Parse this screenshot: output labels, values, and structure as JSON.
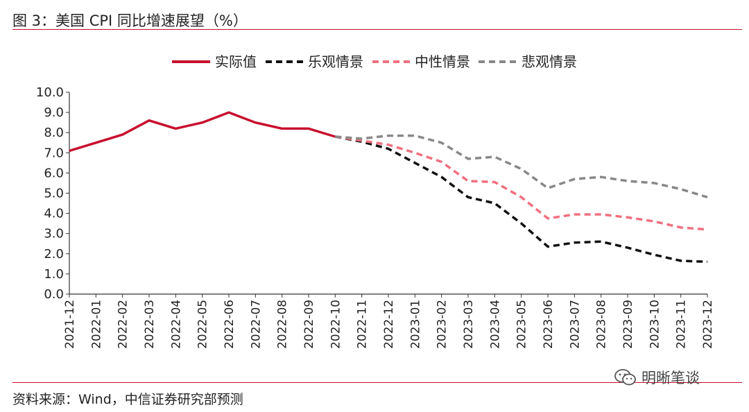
{
  "figure": {
    "title": "图 3：美国 CPI 同比增速展望（%）",
    "source": "资料来源：Wind，中信证券研究部预测",
    "watermark": "明晰笔谈"
  },
  "chart_data": {
    "type": "line",
    "title": "美国 CPI 同比增速展望（%）",
    "xlabel": "",
    "ylabel": "%",
    "ylim": [
      0,
      10
    ],
    "yticks": [
      "0.0",
      "1.0",
      "2.0",
      "3.0",
      "4.0",
      "5.0",
      "6.0",
      "7.0",
      "8.0",
      "9.0",
      "10.0"
    ],
    "grid": false,
    "legend_position": "top-center",
    "categories": [
      "2021-12",
      "2022-01",
      "2022-02",
      "2022-03",
      "2022-04",
      "2022-05",
      "2022-06",
      "2022-07",
      "2022-08",
      "2022-09",
      "2022-10",
      "2022-11",
      "2022-12",
      "2023-01",
      "2023-02",
      "2023-03",
      "2023-04",
      "2023-05",
      "2023-06",
      "2023-07",
      "2023-08",
      "2023-09",
      "2023-10",
      "2023-11",
      "2023-12"
    ],
    "series": [
      {
        "name": "实际值",
        "color": "#c8102e",
        "dash": "solid",
        "values": [
          7.1,
          7.5,
          7.9,
          8.6,
          8.2,
          8.5,
          9.0,
          8.5,
          8.2,
          8.2,
          7.8,
          null,
          null,
          null,
          null,
          null,
          null,
          null,
          null,
          null,
          null,
          null,
          null,
          null,
          null
        ]
      },
      {
        "name": "乐观情景",
        "color": "#111111",
        "dash": "dashed",
        "values": [
          null,
          null,
          null,
          null,
          null,
          null,
          null,
          null,
          null,
          null,
          7.8,
          7.55,
          7.2,
          6.5,
          5.8,
          4.8,
          4.5,
          3.5,
          2.35,
          2.55,
          2.6,
          2.3,
          1.95,
          1.65,
          1.6
        ]
      },
      {
        "name": "中性情景",
        "color": "#f07080",
        "dash": "dashed",
        "values": [
          null,
          null,
          null,
          null,
          null,
          null,
          null,
          null,
          null,
          null,
          7.8,
          7.6,
          7.4,
          7.0,
          6.55,
          5.6,
          5.55,
          4.8,
          3.75,
          3.95,
          3.95,
          3.8,
          3.6,
          3.3,
          3.2
        ]
      },
      {
        "name": "悲观情景",
        "color": "#888888",
        "dash": "dashed",
        "values": [
          null,
          null,
          null,
          null,
          null,
          null,
          null,
          null,
          null,
          null,
          7.8,
          7.7,
          7.85,
          7.85,
          7.5,
          6.7,
          6.8,
          6.2,
          5.25,
          5.7,
          5.8,
          5.6,
          5.5,
          5.2,
          4.8
        ]
      }
    ]
  }
}
